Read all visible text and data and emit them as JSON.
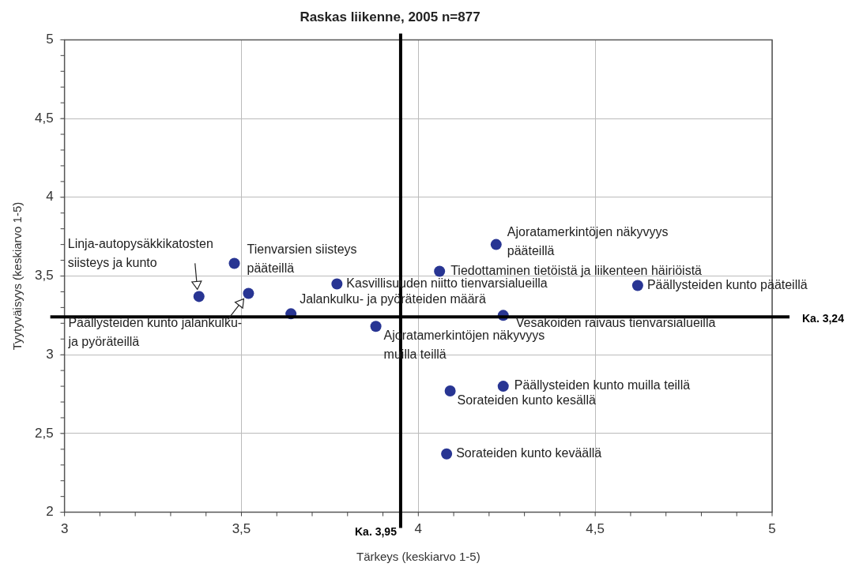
{
  "chart_data": {
    "type": "scatter",
    "title": "Raskas liikenne, 2005 n=877",
    "xlabel": "Tärkeys (keskiarvo 1-5)",
    "ylabel": "Tyytyväisyys (keskiarvo 1-5)",
    "xlim": [
      3,
      5
    ],
    "xticks": [
      3,
      {
        "value": 3.5,
        "label": "3,5"
      },
      4,
      {
        "value": 4.5,
        "label": "4,5"
      },
      5
    ],
    "ylim": [
      2,
      5
    ],
    "yticks": [
      2,
      {
        "value": 2.5,
        "label": "2,5"
      },
      3,
      {
        "value": 3.5,
        "label": "3,5"
      },
      4,
      {
        "value": 4.5,
        "label": "4,5"
      },
      5
    ],
    "grid": true,
    "legend": false,
    "marker": "circle",
    "series": [
      {
        "color": "#283593",
        "x": [
          3.38,
          3.52,
          3.64,
          3.77,
          3.88,
          3.48,
          4.06,
          4.22,
          4.62,
          4.24,
          4.24,
          4.09,
          4.08
        ],
        "values": [
          3.37,
          3.39,
          3.26,
          3.45,
          3.18,
          3.58,
          3.53,
          3.7,
          3.44,
          3.25,
          2.8,
          2.77,
          2.37
        ]
      }
    ],
    "ref_lines": [
      {
        "axis": "y",
        "value": 3.24,
        "label": "Ka. 3,24",
        "color": "#000000"
      },
      {
        "axis": "x",
        "value": 3.95,
        "label": "Ka. 3,95",
        "color": "#000000"
      }
    ],
    "annotations": [
      {
        "text": "Linja-autopysäkkikatosten\nsiisteys ja kunto",
        "x": 3.38,
        "y": 3.37
      },
      {
        "text": "Päällysteiden kunto jalankulku-\nja pyöräteillä",
        "x": 3.52,
        "y": 3.39
      },
      {
        "text": "Jalankulku- ja pyöräteiden määrä",
        "x": 3.64,
        "y": 3.26
      },
      {
        "text": "Kasvillisuuden niitto tienvarsialueilla",
        "x": 3.77,
        "y": 3.45
      },
      {
        "text": "Ajoratamerkintöjen näkyvyys\nmuilla teillä",
        "x": 3.88,
        "y": 3.18
      },
      {
        "text": "Tienvarsien siisteys\npääteillä",
        "x": 3.48,
        "y": 3.58
      },
      {
        "text": "Tiedottaminen tietöistä ja liikenteen häiriöistä",
        "x": 4.06,
        "y": 3.53
      },
      {
        "text": "Ajoratamerkintöjen näkyvyys\npääteillä",
        "x": 4.22,
        "y": 3.7
      },
      {
        "text": "Päällysteiden kunto pääteillä",
        "x": 4.62,
        "y": 3.44
      },
      {
        "text": "Vesakoiden raivaus tienvarsialueilla",
        "x": 4.24,
        "y": 3.25
      },
      {
        "text": "Päällysteiden kunto muilla teillä",
        "x": 4.24,
        "y": 2.8
      },
      {
        "text": "Sorateiden kunto kesällä",
        "x": 4.09,
        "y": 2.77
      },
      {
        "text": "Sorateiden kunto keväällä",
        "x": 4.08,
        "y": 2.37
      }
    ]
  }
}
